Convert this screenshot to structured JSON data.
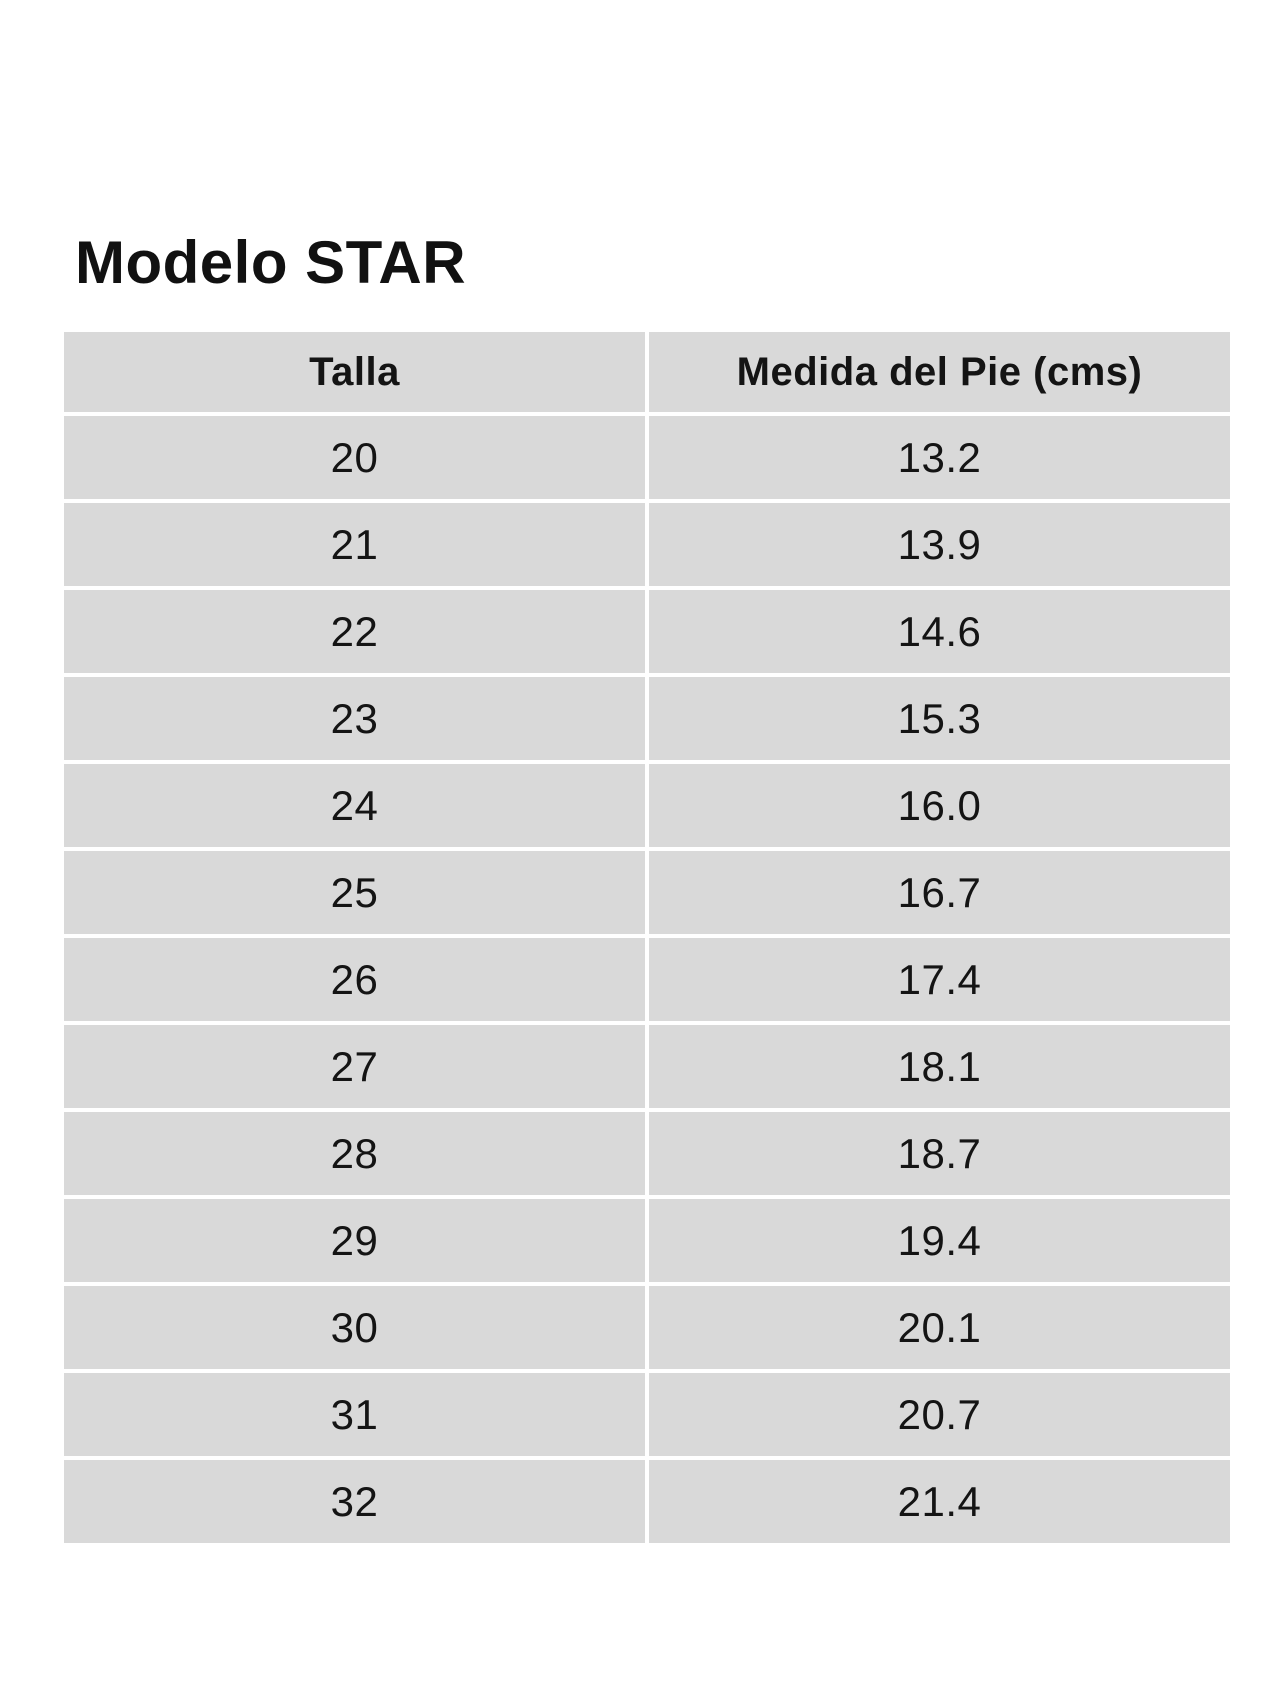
{
  "page": {
    "title": "Modelo STAR"
  },
  "size_chart": {
    "headers": [
      "Talla",
      "Medida del Pie (cms)"
    ],
    "rows": [
      [
        "20",
        "13.2"
      ],
      [
        "21",
        "13.9"
      ],
      [
        "22",
        "14.6"
      ],
      [
        "23",
        "15.3"
      ],
      [
        "24",
        "16.0"
      ],
      [
        "25",
        "16.7"
      ],
      [
        "26",
        "17.4"
      ],
      [
        "27",
        "18.1"
      ],
      [
        "28",
        "18.7"
      ],
      [
        "29",
        "19.4"
      ],
      [
        "30",
        "20.1"
      ],
      [
        "31",
        "20.7"
      ],
      [
        "32",
        "21.4"
      ]
    ]
  },
  "colors": {
    "cell_background": "#d9d9d9",
    "text": "#141414",
    "page_background": "#ffffff"
  }
}
